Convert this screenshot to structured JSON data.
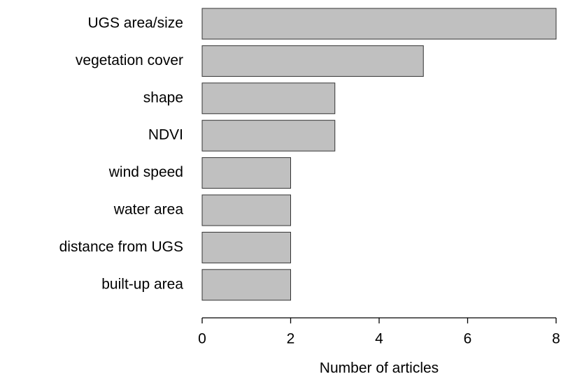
{
  "chart_data": {
    "type": "bar",
    "orientation": "horizontal",
    "x_label": "Number of articles",
    "categories": [
      "UGS area/size",
      "vegetation cover",
      "shape",
      "NDVI",
      "wind speed",
      "water area",
      "distance from UGS",
      "built-up area"
    ],
    "values": [
      8,
      5,
      3,
      3,
      2,
      2,
      2,
      2
    ],
    "color": "#c0c0c0",
    "xlim": [
      0,
      8
    ],
    "xticks": [
      0,
      2,
      4,
      6,
      8
    ]
  }
}
